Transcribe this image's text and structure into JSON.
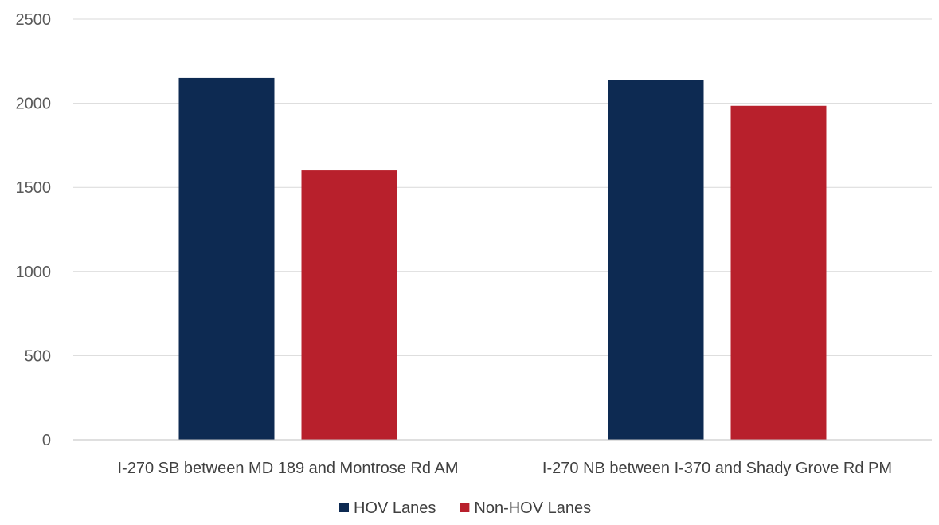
{
  "chart_data": {
    "type": "bar",
    "categories": [
      "I-270 SB between MD 189 and Montrose Rd AM",
      "I-270 NB between I-370 and Shady Grove Rd PM"
    ],
    "series": [
      {
        "name": "HOV Lanes",
        "values": [
          2150,
          2140
        ],
        "color": "#0d2a52"
      },
      {
        "name": "Non-HOV Lanes",
        "values": [
          1600,
          1985
        ],
        "color": "#b8202c"
      }
    ],
    "title": "",
    "xlabel": "",
    "ylabel": "",
    "ylim": [
      0,
      2500
    ],
    "yticks": [
      "0",
      "500",
      "1000",
      "1500",
      "2000",
      "2500"
    ],
    "grid": true,
    "legend_position": "bottom"
  }
}
